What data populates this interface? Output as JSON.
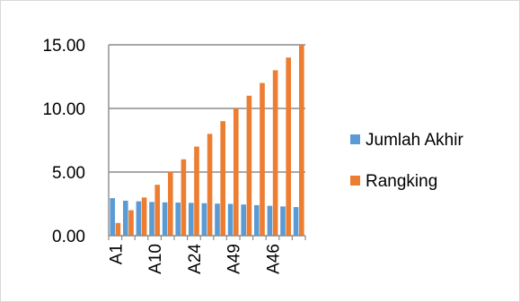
{
  "chart_data": {
    "type": "bar",
    "categories": [
      "A1",
      "",
      "",
      "A10",
      "",
      "",
      "A24",
      "",
      "",
      "A49",
      "",
      "",
      "A46",
      "",
      ""
    ],
    "series": [
      {
        "name": "Jumlah Akhir",
        "color": "#5B9BD5",
        "values": [
          2.95,
          2.75,
          2.7,
          2.65,
          2.62,
          2.6,
          2.58,
          2.55,
          2.52,
          2.5,
          2.45,
          2.4,
          2.35,
          2.3,
          2.25
        ]
      },
      {
        "name": "Rangking",
        "color": "#ED7D31",
        "values": [
          1,
          2,
          3,
          4,
          5,
          6,
          7,
          8,
          9,
          10,
          11,
          12,
          13,
          14,
          15
        ]
      }
    ],
    "ylim": [
      0,
      15
    ],
    "yticks": [
      "0.00",
      "5.00",
      "10.00",
      "15.00"
    ],
    "grid": true,
    "legend_position": "right",
    "title": "",
    "xlabel": "",
    "ylabel": ""
  }
}
